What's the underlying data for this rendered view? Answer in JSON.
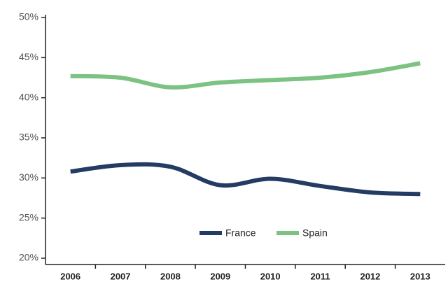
{
  "chart_data": {
    "type": "line",
    "categories": [
      "2006",
      "2007",
      "2008",
      "2009",
      "2010",
      "2011",
      "2012",
      "2013"
    ],
    "series": [
      {
        "name": "France",
        "color": "#243b63",
        "values": [
          30.8,
          31.6,
          31.4,
          29.1,
          29.9,
          29.0,
          28.2,
          28.0
        ]
      },
      {
        "name": "Spain",
        "color": "#7cc283",
        "values": [
          42.7,
          42.5,
          41.3,
          41.9,
          42.2,
          42.5,
          43.2,
          44.3
        ]
      }
    ],
    "ylim": [
      20,
      50
    ],
    "yticks": [
      {
        "value": 20,
        "label": "20%"
      },
      {
        "value": 25,
        "label": "25%"
      },
      {
        "value": 30,
        "label": "30%"
      },
      {
        "value": 35,
        "label": "35%"
      },
      {
        "value": 40,
        "label": "40%"
      },
      {
        "value": 45,
        "label": "45%"
      },
      {
        "value": 50,
        "label": "50%"
      }
    ],
    "grid": false,
    "legend": "bottom"
  }
}
